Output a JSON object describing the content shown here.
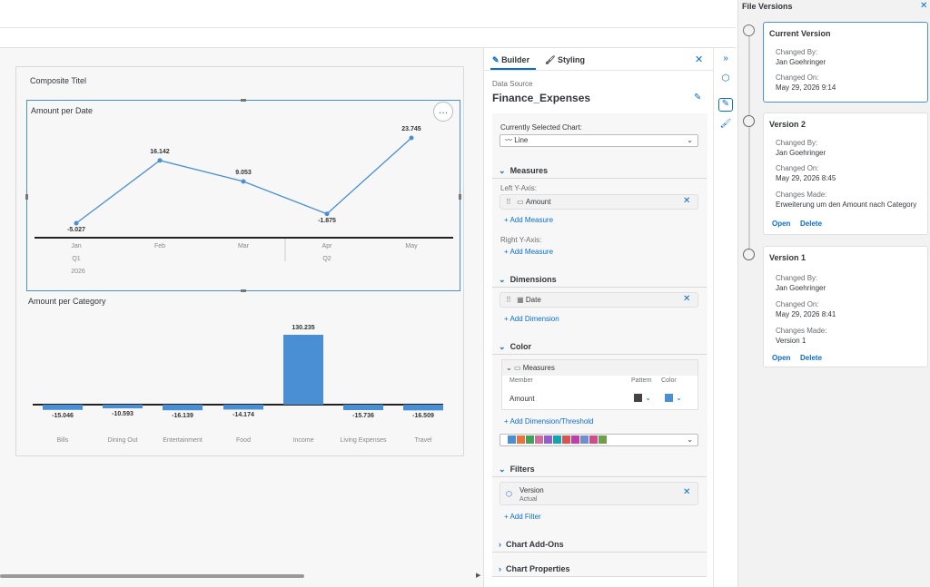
{
  "canvas": {
    "composite_title": "Composite Titel",
    "more_icon": "…"
  },
  "chart_data": [
    {
      "type": "line",
      "title": "Amount per Date",
      "categories": [
        "Jan",
        "Feb",
        "Mar",
        "Apr",
        "May"
      ],
      "values": [
        -5.027,
        16.142,
        9.053,
        -1.875,
        23.745
      ],
      "labels": [
        "-5.027",
        "16.142",
        "9.053",
        "-1.875",
        "23.745"
      ],
      "quarters": [
        "Q1",
        "Q2"
      ],
      "year": "2026",
      "color": "#4a8fd4"
    },
    {
      "type": "bar",
      "title": "Amount per Category",
      "categories": [
        "Bills",
        "Dining Out",
        "Entertainment",
        "Food",
        "Income",
        "Living Expenses",
        "Travel"
      ],
      "values": [
        -15.046,
        -10.593,
        -16.139,
        -14.174,
        130.235,
        -15.736,
        -16.509
      ],
      "labels": [
        "-15.046",
        "-10.593",
        "-16.139",
        "-14.174",
        "130.235",
        "-15.736",
        "-16.509"
      ],
      "color": "#4a8fd4"
    }
  ],
  "builder": {
    "tab_builder": "Builder",
    "tab_styling": "Styling",
    "data_source_label": "Data Source",
    "data_source": "Finance_Expenses",
    "selected_chart_label": "Currently Selected Chart:",
    "selected_chart": "Line",
    "measures": "Measures",
    "left_y": "Left Y-Axis:",
    "amount": "Amount",
    "add_measure": "Add Measure",
    "right_y": "Right Y-Axis:",
    "dimensions": "Dimensions",
    "date": "Date",
    "add_dimension": "Add Dimension",
    "color": "Color",
    "color_measures": "Measures",
    "member_col": "Member",
    "pattern_col": "Pattern",
    "color_col": "Color",
    "member_amount": "Amount",
    "add_threshold": "Add Dimension/Threshold",
    "palette": [
      "#4a8fd4",
      "#e8743b",
      "#3fa45b",
      "#d4699e",
      "#945ecf",
      "#13a4b4",
      "#d9534f",
      "#c23dab",
      "#6c8fd4",
      "#d44a8c",
      "#6e9e4a"
    ],
    "filters": "Filters",
    "filter_name": "Version",
    "filter_value": "Actual",
    "add_filter": "Add Filter",
    "addons": "Chart Add-Ons",
    "properties": "Chart Properties"
  },
  "versions": {
    "title": "File Versions",
    "changed_by_label": "Changed By:",
    "changed_on_label": "Changed On:",
    "changes_made_label": "Changes Made:",
    "open": "Open",
    "delete": "Delete",
    "items": [
      {
        "name": "Current Version",
        "by": "Jan Goehringer",
        "on": "May 29, 2026 9:14"
      },
      {
        "name": "Version 2",
        "by": "Jan Goehringer",
        "on": "May 29, 2026 8:45",
        "changes": "Erweiterung um den Amount nach Category"
      },
      {
        "name": "Version 1",
        "by": "Jan Goehringer",
        "on": "May 29, 2026 8:41",
        "changes": "Version 1"
      }
    ]
  }
}
